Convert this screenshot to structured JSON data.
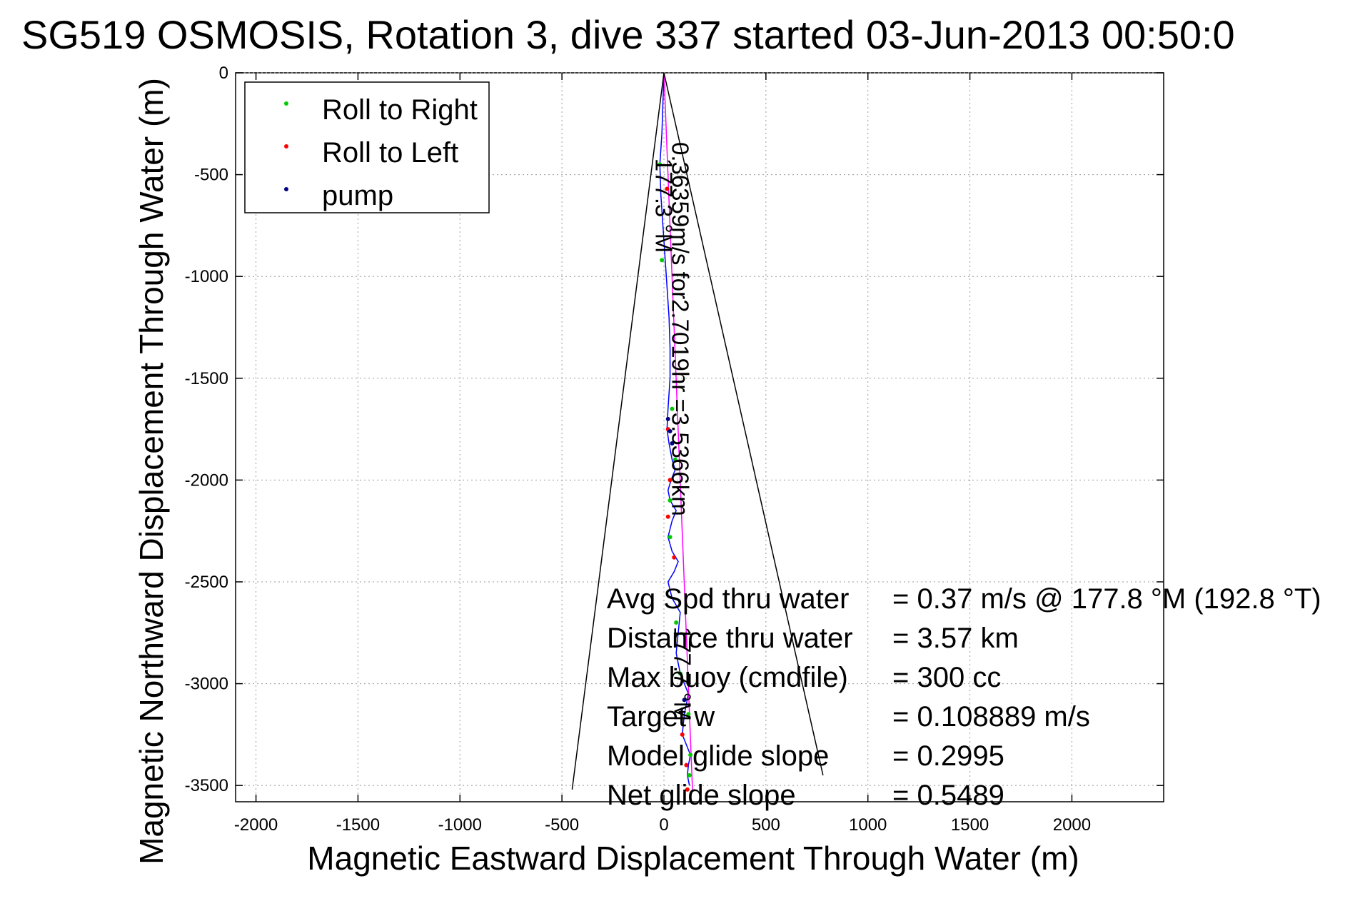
{
  "chart_data": {
    "type": "line",
    "title": "SG519 OSMOSIS, Rotation 3, dive 337 started 03-Jun-2013 00:50:0",
    "xlabel": "Magnetic Eastward Displacement Through Water (m)",
    "ylabel": "Magnetic Northward Displacement Through Water (m)",
    "xlim": [
      -2100,
      2450
    ],
    "ylim": [
      -3580,
      0
    ],
    "xticks": [
      -2000,
      -1500,
      -1000,
      -500,
      0,
      500,
      1000,
      1500,
      2000
    ],
    "yticks": [
      0,
      -500,
      -1000,
      -1500,
      -2000,
      -2500,
      -3000,
      -3500
    ],
    "grid": true,
    "legend_position": "top-left",
    "legend": [
      {
        "label": "Roll to Right",
        "color": "#00cc00"
      },
      {
        "label": "Roll to Left",
        "color": "#ff0000"
      },
      {
        "label": "pump",
        "color": "#000080"
      }
    ],
    "series": [
      {
        "color": "#0000ff",
        "x": [
          0,
          -5,
          -10,
          -20,
          -15,
          -5,
          5,
          15,
          25,
          30,
          30,
          20,
          15,
          25,
          40,
          55,
          35,
          20,
          30,
          60,
          40,
          20,
          40,
          70,
          50,
          20,
          40,
          80,
          70,
          60,
          80,
          120,
          100,
          90,
          110,
          130,
          120,
          115,
          125
        ],
        "y": [
          0,
          -150,
          -300,
          -450,
          -600,
          -750,
          -900,
          -1050,
          -1200,
          -1350,
          -1500,
          -1650,
          -1750,
          -1820,
          -1900,
          -1950,
          -2000,
          -2050,
          -2100,
          -2150,
          -2200,
          -2280,
          -2350,
          -2400,
          -2450,
          -2500,
          -2580,
          -2650,
          -2750,
          -2850,
          -2950,
          -3050,
          -3150,
          -3250,
          -3300,
          -3350,
          -3400,
          -3450,
          -3500
        ]
      },
      {
        "color": "#ff00ff",
        "x": [
          0,
          35,
          70,
          105,
          140
        ],
        "y": [
          0,
          -880,
          -1760,
          -2640,
          -3520
        ]
      },
      {
        "color": "#000000",
        "x": [
          0,
          -450
        ],
        "y": [
          0,
          -3520
        ]
      },
      {
        "color": "#000000",
        "x": [
          0,
          780
        ],
        "y": [
          0,
          -3450
        ]
      }
    ],
    "markers": {
      "roll_right": {
        "color": "#00cc00",
        "x": [
          -20,
          -10,
          40,
          55,
          30,
          30,
          60,
          80,
          120,
          130,
          125
        ],
        "y": [
          -450,
          -920,
          -1650,
          -1900,
          -2100,
          -2280,
          -2700,
          -2950,
          -3150,
          -3350,
          -3450
        ]
      },
      "roll_left": {
        "color": "#ff0000",
        "x": [
          15,
          20,
          30,
          20,
          50,
          90,
          110,
          115
        ],
        "y": [
          -570,
          -1750,
          -2000,
          -2180,
          -2380,
          -3250,
          -3400,
          -3520
        ]
      },
      "pump": {
        "color": "#000080",
        "x": [
          20,
          30,
          40,
          100
        ],
        "y": [
          -1700,
          -1760,
          -1820,
          -3080
        ]
      }
    },
    "annotations": {
      "left_heading": "177.3 °M",
      "speed_note": "0.36359m/s for2.7019hr =3.5366km",
      "right_heading": "177.7 °M"
    },
    "stats": [
      {
        "label": "Avg Spd thru water",
        "value": "=  0.37 m/s @ 177.8 °M (192.8 °T)"
      },
      {
        "label": "Distance thru water",
        "value": "=  3.57 km"
      },
      {
        "label": "Max buoy (cmdfile)",
        "value": "= 300 cc"
      },
      {
        "label": "Target w",
        "value": "= 0.108889 m/s"
      },
      {
        "label": "Model glide slope",
        "value": "= 0.2995"
      },
      {
        "label": "Net glide slope",
        "value": "= 0.5489"
      }
    ]
  }
}
